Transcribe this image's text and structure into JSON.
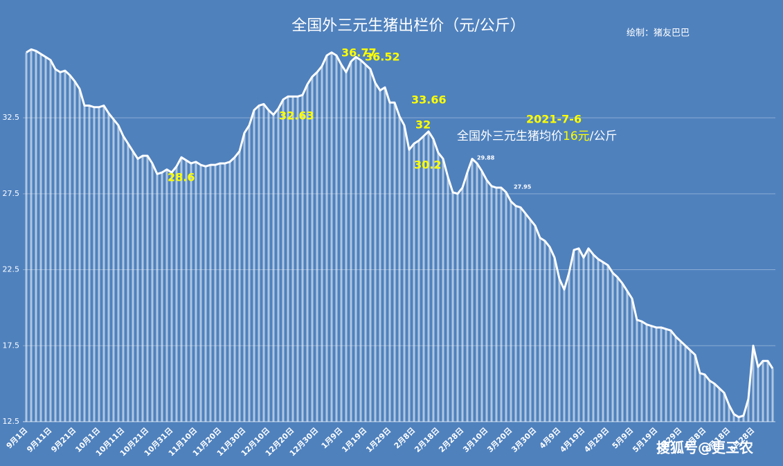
{
  "chart_data": {
    "type": "bar-line",
    "title": "全国外三元生猪出栏价（元/公斤）",
    "subtitle": "绘制：猪友巴巴",
    "watermark": "搜狐号@更三农",
    "color": "#ffffff",
    "grid": true,
    "ylim": [
      12.5,
      37.7
    ],
    "yticks": [
      12.5,
      17.5,
      22.5,
      27.5,
      32.5
    ],
    "categories": [
      "9月1日",
      null,
      null,
      null,
      null,
      "9月11日",
      null,
      null,
      null,
      null,
      "9月21日",
      null,
      null,
      null,
      null,
      "10月1日",
      null,
      null,
      null,
      null,
      "10月11日",
      null,
      null,
      null,
      null,
      "10月21日",
      null,
      null,
      null,
      null,
      "10月31日",
      null,
      null,
      null,
      null,
      "11月10日",
      null,
      null,
      null,
      null,
      "11月20日",
      null,
      null,
      null,
      null,
      "11月30日",
      null,
      null,
      null,
      null,
      "12月10日",
      null,
      null,
      null,
      null,
      "12月20日",
      null,
      null,
      null,
      null,
      "12月30日",
      null,
      null,
      null,
      null,
      "1月9日",
      null,
      null,
      null,
      null,
      "1月19日",
      null,
      null,
      null,
      null,
      "1月29日",
      null,
      null,
      null,
      null,
      "2月8日",
      null,
      null,
      null,
      null,
      "2月18日",
      null,
      null,
      null,
      null,
      "2月28日",
      null,
      null,
      null,
      null,
      "3月10日",
      null,
      null,
      null,
      null,
      "3月20日",
      null,
      null,
      null,
      null,
      "3月30日",
      null,
      null,
      null,
      null,
      "4月9日",
      null,
      null,
      null,
      null,
      "4月19日",
      null,
      null,
      null,
      null,
      "4月29日",
      null,
      null,
      null,
      null,
      "5月9日",
      null,
      null,
      null,
      null,
      "5月19日",
      null,
      null,
      null,
      null,
      "5月29日",
      null,
      null,
      null,
      null,
      "6月8日",
      null,
      null,
      null,
      null,
      "6月18日",
      null,
      null,
      null,
      null,
      "6月28日",
      null,
      null,
      null,
      null
    ],
    "values": [
      36.8,
      37.0,
      36.9,
      36.7,
      36.5,
      36.3,
      35.7,
      35.5,
      35.6,
      35.3,
      34.9,
      34.4,
      33.3,
      33.3,
      33.2,
      33.2,
      33.3,
      32.8,
      32.4,
      32.0,
      31.3,
      30.8,
      30.3,
      29.8,
      30.0,
      30.0,
      29.5,
      28.8,
      28.9,
      29.1,
      28.9,
      29.3,
      29.9,
      29.7,
      29.5,
      29.6,
      29.4,
      29.3,
      29.4,
      29.4,
      29.5,
      29.5,
      29.6,
      29.9,
      30.3,
      31.5,
      32.0,
      33.0,
      33.3,
      33.4,
      33.0,
      32.7,
      33.1,
      33.7,
      33.9,
      33.9,
      33.9,
      34.0,
      34.7,
      35.2,
      35.5,
      35.9,
      36.6,
      36.8,
      36.6,
      36.0,
      35.5,
      36.2,
      36.5,
      36.3,
      36.0,
      35.7,
      34.8,
      34.3,
      34.5,
      33.5,
      33.5,
      32.6,
      32.0,
      30.4,
      30.8,
      31.0,
      31.3,
      31.6,
      31.1,
      30.2,
      29.8,
      28.6,
      27.6,
      27.5,
      27.9,
      28.9,
      29.8,
      29.5,
      29.0,
      28.4,
      28.0,
      27.9,
      27.9,
      27.6,
      27.0,
      26.7,
      26.6,
      26.2,
      25.8,
      25.4,
      24.6,
      24.4,
      24.0,
      23.3,
      21.9,
      21.2,
      22.3,
      23.8,
      23.9,
      23.3,
      23.9,
      23.5,
      23.2,
      23.0,
      22.8,
      22.3,
      22.0,
      21.6,
      21.1,
      20.6,
      19.2,
      19.1,
      18.9,
      18.8,
      18.7,
      18.7,
      18.6,
      18.5,
      18.1,
      17.8,
      17.5,
      17.2,
      16.9,
      15.7,
      15.6,
      15.2,
      15.0,
      14.7,
      14.4,
      13.6,
      13.0,
      12.8,
      12.9,
      14.0,
      17.5,
      16.1,
      16.5,
      16.5,
      16.0
    ],
    "annotations": [
      "36.77",
      "36.52",
      "32.63",
      "28.6",
      "33.66",
      "32",
      "30.2",
      "29.88",
      "27.95",
      "2021-7-6",
      "全国外三元生猪均价",
      "16元",
      "/公斤"
    ]
  }
}
